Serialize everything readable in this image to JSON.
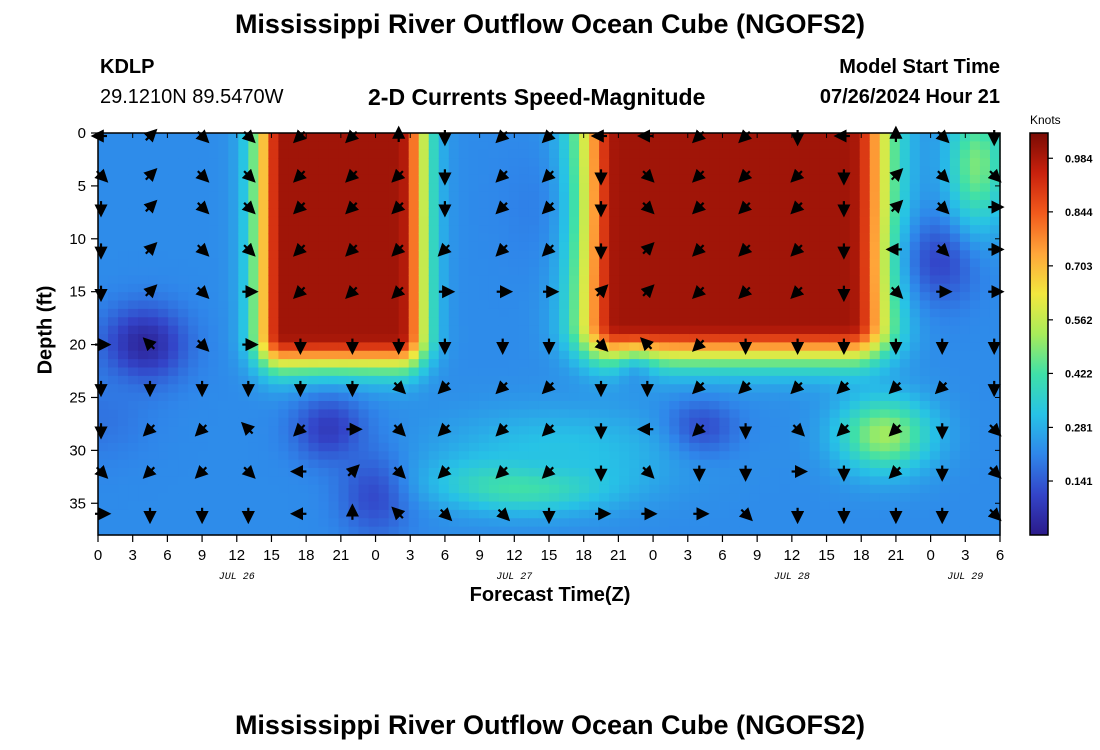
{
  "header": {
    "title": "Mississippi River Outflow Ocean Cube (NGOFS2)",
    "station_id": "KDLP",
    "station_coords": "29.1210N  89.5470W",
    "subtitle": "2-D Currents Speed-Magnitude",
    "model_start_label": "Model Start Time",
    "model_start_value": "07/26/2024 Hour 21"
  },
  "footer": {
    "title": "Mississippi River Outflow Ocean Cube (NGOFS2)"
  },
  "chart_data": {
    "type": "heatmap",
    "title": "2-D Currents Speed-Magnitude",
    "xlabel": "Forecast Time(Z)",
    "ylabel": "Depth (ft)",
    "x_unit": "forecast hours from 07/26/2024 00Z",
    "xlim": [
      0,
      78
    ],
    "ylim": [
      38,
      0
    ],
    "y_inverted": true,
    "x_ticks": [
      0,
      3,
      6,
      9,
      12,
      15,
      18,
      21,
      24,
      27,
      30,
      33,
      36,
      39,
      42,
      45,
      48,
      51,
      54,
      57,
      60,
      63,
      66,
      69,
      72,
      75,
      78
    ],
    "x_tick_labels": [
      "0",
      "3",
      "6",
      "9",
      "12",
      "15",
      "18",
      "21",
      "0",
      "3",
      "6",
      "9",
      "12",
      "15",
      "18",
      "21",
      "0",
      "3",
      "6",
      "9",
      "12",
      "15",
      "18",
      "21",
      "0",
      "3",
      "6"
    ],
    "y_ticks": [
      0,
      5,
      10,
      15,
      20,
      25,
      30,
      35
    ],
    "y_tick_labels": [
      "0",
      "5",
      "10",
      "15",
      "20",
      "25",
      "30",
      "35"
    ],
    "date_labels": [
      {
        "x": 12,
        "text": "JUL 26"
      },
      {
        "x": 36,
        "text": "JUL 27"
      },
      {
        "x": 60,
        "text": "JUL 28"
      },
      {
        "x": 75,
        "text": "JUL 29"
      }
    ],
    "colorbar": {
      "title": "Knots",
      "ticks": [
        0.141,
        0.281,
        0.422,
        0.562,
        0.703,
        0.844,
        0.984
      ],
      "tick_labels": [
        "0.141",
        "0.281",
        "0.422",
        "0.562",
        "0.703",
        "0.844",
        "0.984"
      ],
      "range": [
        0,
        1.05
      ],
      "colors": [
        "#2b1a8a",
        "#3344c8",
        "#2f86ea",
        "#27c2e6",
        "#3fe0a8",
        "#a8ec5a",
        "#f3e83e",
        "#ffa63a",
        "#f25a1c",
        "#c9210d",
        "#7a0b04"
      ]
    },
    "speed_features": [
      {
        "x": 4,
        "y": 20,
        "value": 0.03,
        "sx": 3.5,
        "sy": 3.5
      },
      {
        "x": 0,
        "y": 27,
        "value": 0.18,
        "sx": 4.5,
        "sy": 4
      },
      {
        "x": 20,
        "y": 7,
        "value": 1.0,
        "sx": 4.8,
        "sy": 6.5,
        "extent": [
          16,
          26,
          0,
          19
        ]
      },
      {
        "x": 43,
        "y": 7,
        "value": 0.16,
        "sx": 6,
        "sy": 6
      },
      {
        "x": 47,
        "y": 13,
        "value": 0.09,
        "sx": 1.5,
        "sy": 2.5
      },
      {
        "x": 46.5,
        "y": 21,
        "value": 0.02,
        "sx": 1.7,
        "sy": 2.2
      },
      {
        "x": 52,
        "y": 28,
        "value": 0.08,
        "sx": 3,
        "sy": 2.5
      },
      {
        "x": 54,
        "y": 6,
        "value": 1.0,
        "sx": 7,
        "sy": 7,
        "extent": [
          45,
          65,
          0,
          18
        ]
      },
      {
        "x": 73,
        "y": 12,
        "value": 0.1,
        "sx": 3,
        "sy": 4
      },
      {
        "x": 76,
        "y": 3,
        "value": 0.48,
        "sx": 2.5,
        "sy": 6
      },
      {
        "x": 20,
        "y": 28,
        "value": 0.08,
        "sx": 3,
        "sy": 3
      },
      {
        "x": 24,
        "y": 34,
        "value": 0.1,
        "sx": 3,
        "sy": 4
      },
      {
        "x": 37,
        "y": 33,
        "value": 0.5,
        "sx": 7,
        "sy": 2.5
      },
      {
        "x": 68,
        "y": 28.5,
        "value": 0.52,
        "sx": 4,
        "sy": 3.5
      },
      {
        "x": 40,
        "y": 30,
        "value": 0.32,
        "sx": 10,
        "sy": 4
      }
    ],
    "arrows_x": [
      0,
      4.5,
      9,
      13,
      17.5,
      22,
      26,
      30,
      35,
      39,
      43.5,
      47.5,
      52,
      56,
      60.5,
      64.5,
      69,
      73,
      77.5
    ],
    "arrows_y": [
      0,
      4,
      7,
      11,
      15,
      20,
      24,
      28,
      32,
      36
    ],
    "arrow_directions_deg": [
      [
        180,
        315,
        45,
        45,
        135,
        135,
        270,
        90,
        135,
        135,
        180,
        180,
        135,
        135,
        90,
        180,
        270,
        45,
        90
      ],
      [
        45,
        315,
        45,
        45,
        135,
        135,
        135,
        90,
        135,
        135,
        90,
        45,
        135,
        135,
        135,
        90,
        315,
        45,
        45
      ],
      [
        90,
        315,
        45,
        45,
        135,
        135,
        135,
        90,
        135,
        135,
        90,
        45,
        135,
        135,
        135,
        90,
        315,
        45,
        0
      ],
      [
        90,
        315,
        45,
        45,
        135,
        135,
        135,
        135,
        135,
        135,
        90,
        315,
        135,
        135,
        135,
        90,
        180,
        45,
        0
      ],
      [
        90,
        315,
        45,
        0,
        135,
        135,
        135,
        0,
        0,
        0,
        315,
        315,
        135,
        135,
        135,
        90,
        45,
        0,
        0
      ],
      [
        0,
        225,
        45,
        0,
        90,
        90,
        90,
        90,
        90,
        90,
        45,
        225,
        135,
        90,
        90,
        90,
        90,
        90,
        90
      ],
      [
        90,
        90,
        90,
        90,
        90,
        90,
        45,
        135,
        135,
        135,
        90,
        90,
        135,
        135,
        135,
        135,
        135,
        135,
        90
      ],
      [
        90,
        135,
        135,
        225,
        135,
        0,
        45,
        135,
        135,
        135,
        90,
        180,
        135,
        90,
        45,
        135,
        135,
        90,
        45
      ],
      [
        45,
        135,
        135,
        45,
        180,
        315,
        45,
        135,
        135,
        135,
        90,
        45,
        90,
        90,
        0,
        90,
        135,
        90,
        45
      ],
      [
        0,
        90,
        90,
        90,
        180,
        270,
        225,
        45,
        45,
        90,
        0,
        0,
        0,
        45,
        90,
        90,
        90,
        90,
        45
      ]
    ]
  }
}
